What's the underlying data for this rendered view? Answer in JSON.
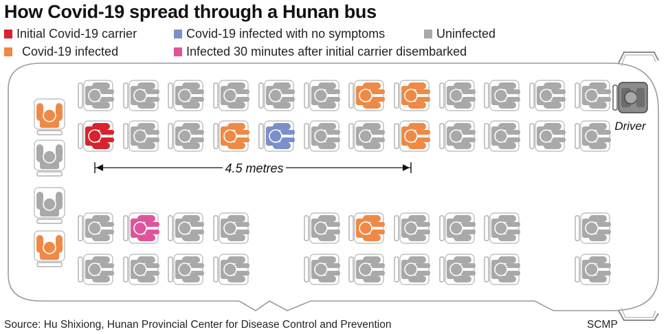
{
  "title": "How Covid-19 spread through a Hunan bus",
  "legend": [
    {
      "label": "Initial Covid-19 carrier",
      "color": "#d7232e"
    },
    {
      "label": "Covid-19 infected with no symptoms",
      "color": "#7d8fc9"
    },
    {
      "label": "Uninfected",
      "color": "#a9a9a9"
    },
    {
      "label": "Covid-19 infected",
      "color": "#ee8a45"
    },
    {
      "label": "Infected 30 minutes after initial carrier disembarked",
      "color": "#e0549c"
    }
  ],
  "colors": {
    "initial": "#d7232e",
    "asymptomatic": "#7d8fc9",
    "uninfected": "#a9a9a9",
    "infected": "#ee8a45",
    "late": "#e0549c",
    "driver": "#6b6b6b"
  },
  "distance_label": "4.5 metres",
  "driver_label": "Driver",
  "source": "Source: Hu Shixiong, Hunan Provincial Center for Disease Control and Prevention",
  "credit": "SCMP",
  "seating": {
    "front_right_upper": [
      [
        "uninfected",
        "uninfected",
        "uninfected",
        "uninfected",
        "uninfected",
        "uninfected",
        "infected",
        "infected",
        "uninfected",
        "uninfected",
        "uninfected",
        "uninfected"
      ],
      [
        "initial",
        "uninfected",
        "uninfected",
        "infected",
        "asymptomatic",
        "uninfected",
        "uninfected",
        "infected",
        "uninfected",
        "uninfected",
        "uninfected",
        "uninfected"
      ]
    ],
    "right_lower": [
      [
        "uninfected",
        "late",
        "uninfected",
        "uninfected",
        null,
        "uninfected",
        "infected",
        "uninfected",
        "uninfected",
        "uninfected",
        null,
        "uninfected"
      ],
      [
        "uninfected",
        "uninfected",
        "uninfected",
        "uninfected",
        null,
        "uninfected",
        "uninfected",
        "uninfected",
        "uninfected",
        "uninfected",
        null,
        "uninfected"
      ]
    ],
    "back_row": [
      "infected",
      "uninfected",
      "uninfected",
      "infected"
    ]
  }
}
